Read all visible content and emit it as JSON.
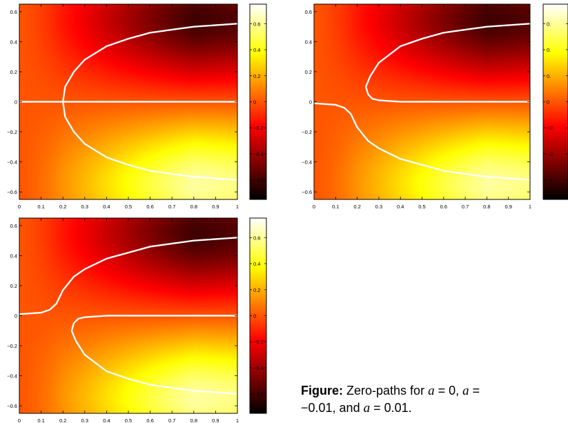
{
  "chart_data": [
    {
      "type": "heatmap",
      "a": 0,
      "xlim": [
        0,
        1
      ],
      "ylim": [
        -0.65,
        0.65
      ],
      "x_ticks": [
        "0",
        "0.1",
        "0.2",
        "0.3",
        "0.4",
        "0.5",
        "0.6",
        "0.7",
        "0.8",
        "0.9",
        "1"
      ],
      "y_ticks": [
        "−0.6",
        "−0.4",
        "−0.2",
        "0",
        "0.2",
        "0.4",
        "0.6"
      ],
      "colorbar": {
        "range": [
          -0.75,
          0.75
        ],
        "ticks": [
          "0.6",
          "0.4",
          "0.2",
          "0",
          "−0.2",
          "−0.4",
          "−0.6"
        ],
        "colormap": "hot"
      },
      "zero_path_color": "#ffffff",
      "zero_paths": [
        {
          "x": [
            0,
            0.1,
            0.2,
            0.3,
            0.4,
            0.5,
            0.6,
            0.7,
            0.8,
            0.9,
            1.0
          ],
          "y": [
            0,
            0,
            0,
            0,
            0,
            0,
            0,
            0,
            0,
            0,
            0
          ]
        },
        {
          "x": [
            0.2,
            0.21,
            0.25,
            0.3,
            0.4,
            0.5,
            0.6,
            0.7,
            0.8,
            0.9,
            1.0
          ],
          "y": [
            0,
            0.1,
            0.2,
            0.28,
            0.37,
            0.42,
            0.46,
            0.48,
            0.5,
            0.51,
            0.52
          ]
        },
        {
          "x": [
            0.2,
            0.21,
            0.25,
            0.3,
            0.4,
            0.5,
            0.6,
            0.7,
            0.8,
            0.9,
            1.0
          ],
          "y": [
            0,
            -0.1,
            -0.2,
            -0.28,
            -0.37,
            -0.42,
            -0.46,
            -0.48,
            -0.5,
            -0.51,
            -0.52
          ]
        }
      ]
    },
    {
      "type": "heatmap",
      "a": -0.01,
      "xlim": [
        0,
        1
      ],
      "ylim": [
        -0.65,
        0.65
      ],
      "x_ticks": [
        "0",
        "0.1",
        "0.2",
        "0.3",
        "0.4",
        "0.5",
        "0.6",
        "0.7",
        "0.8",
        "0.9",
        "1"
      ],
      "y_ticks": [
        "−0.6",
        "−0.4",
        "−0.2",
        "0",
        "0.2",
        "0.4",
        "0.6"
      ],
      "colorbar": {
        "range": [
          -0.75,
          0.75
        ],
        "ticks": [
          "0.",
          "0.",
          "0.",
          "0",
          "−0",
          "−0",
          "−0"
        ],
        "colormap": "hot"
      },
      "zero_path_color": "#ffffff",
      "zero_paths": [
        {
          "x": [
            0,
            0.05,
            0.1,
            0.14,
            0.17,
            0.2,
            0.25,
            0.3,
            0.4,
            0.5,
            0.6,
            0.7,
            0.8,
            0.9,
            1.0
          ],
          "y": [
            -0.01,
            -0.015,
            -0.02,
            -0.04,
            -0.08,
            -0.17,
            -0.26,
            -0.31,
            -0.38,
            -0.42,
            -0.46,
            -0.48,
            -0.5,
            -0.51,
            -0.52
          ]
        },
        {
          "x": [
            1.0,
            0.9,
            0.8,
            0.7,
            0.6,
            0.5,
            0.4,
            0.3,
            0.27,
            0.25,
            0.24,
            0.26,
            0.3,
            0.4,
            0.5,
            0.6,
            0.7,
            0.8,
            0.9,
            1.0
          ],
          "y": [
            0.0,
            0.0,
            0.0,
            0.0,
            0.0,
            0.0,
            0.0,
            0.01,
            0.02,
            0.05,
            0.1,
            0.17,
            0.26,
            0.37,
            0.42,
            0.46,
            0.48,
            0.5,
            0.51,
            0.52
          ]
        }
      ]
    },
    {
      "type": "heatmap",
      "a": 0.01,
      "xlim": [
        0,
        1
      ],
      "ylim": [
        -0.65,
        0.65
      ],
      "x_ticks": [
        "0",
        "0.1",
        "0.2",
        "0.3",
        "0.4",
        "0.5",
        "0.6",
        "0.7",
        "0.8",
        "0.9",
        "1"
      ],
      "y_ticks": [
        "−0.6",
        "−0.4",
        "−0.2",
        "0",
        "0.2",
        "0.4",
        "0.6"
      ],
      "colorbar": {
        "range": [
          -0.75,
          0.75
        ],
        "ticks": [
          "0.6",
          "0.4",
          "0.2",
          "0",
          "−0.2",
          "−0.4",
          "−0.6"
        ],
        "colormap": "hot"
      },
      "zero_path_color": "#ffffff",
      "zero_paths": [
        {
          "x": [
            0,
            0.05,
            0.1,
            0.14,
            0.17,
            0.2,
            0.25,
            0.3,
            0.4,
            0.5,
            0.6,
            0.7,
            0.8,
            0.9,
            1.0
          ],
          "y": [
            0.01,
            0.015,
            0.02,
            0.04,
            0.08,
            0.17,
            0.26,
            0.31,
            0.38,
            0.42,
            0.46,
            0.48,
            0.5,
            0.51,
            0.52
          ]
        },
        {
          "x": [
            1.0,
            0.9,
            0.8,
            0.7,
            0.6,
            0.5,
            0.4,
            0.3,
            0.27,
            0.25,
            0.24,
            0.26,
            0.3,
            0.4,
            0.5,
            0.6,
            0.7,
            0.8,
            0.9,
            1.0
          ],
          "y": [
            0.0,
            0.0,
            0.0,
            0.0,
            0.0,
            0.0,
            0.0,
            -0.01,
            -0.02,
            -0.05,
            -0.1,
            -0.17,
            -0.26,
            -0.37,
            -0.42,
            -0.46,
            -0.48,
            -0.5,
            -0.51,
            -0.52
          ]
        }
      ]
    }
  ],
  "caption": {
    "label": "Figure:",
    "text_1": "Zero-paths for",
    "var": "a",
    "eq_1": "= 0,",
    "eq_2": "=",
    "val_2": "−0.01, and",
    "eq_3": "= 0.01."
  }
}
